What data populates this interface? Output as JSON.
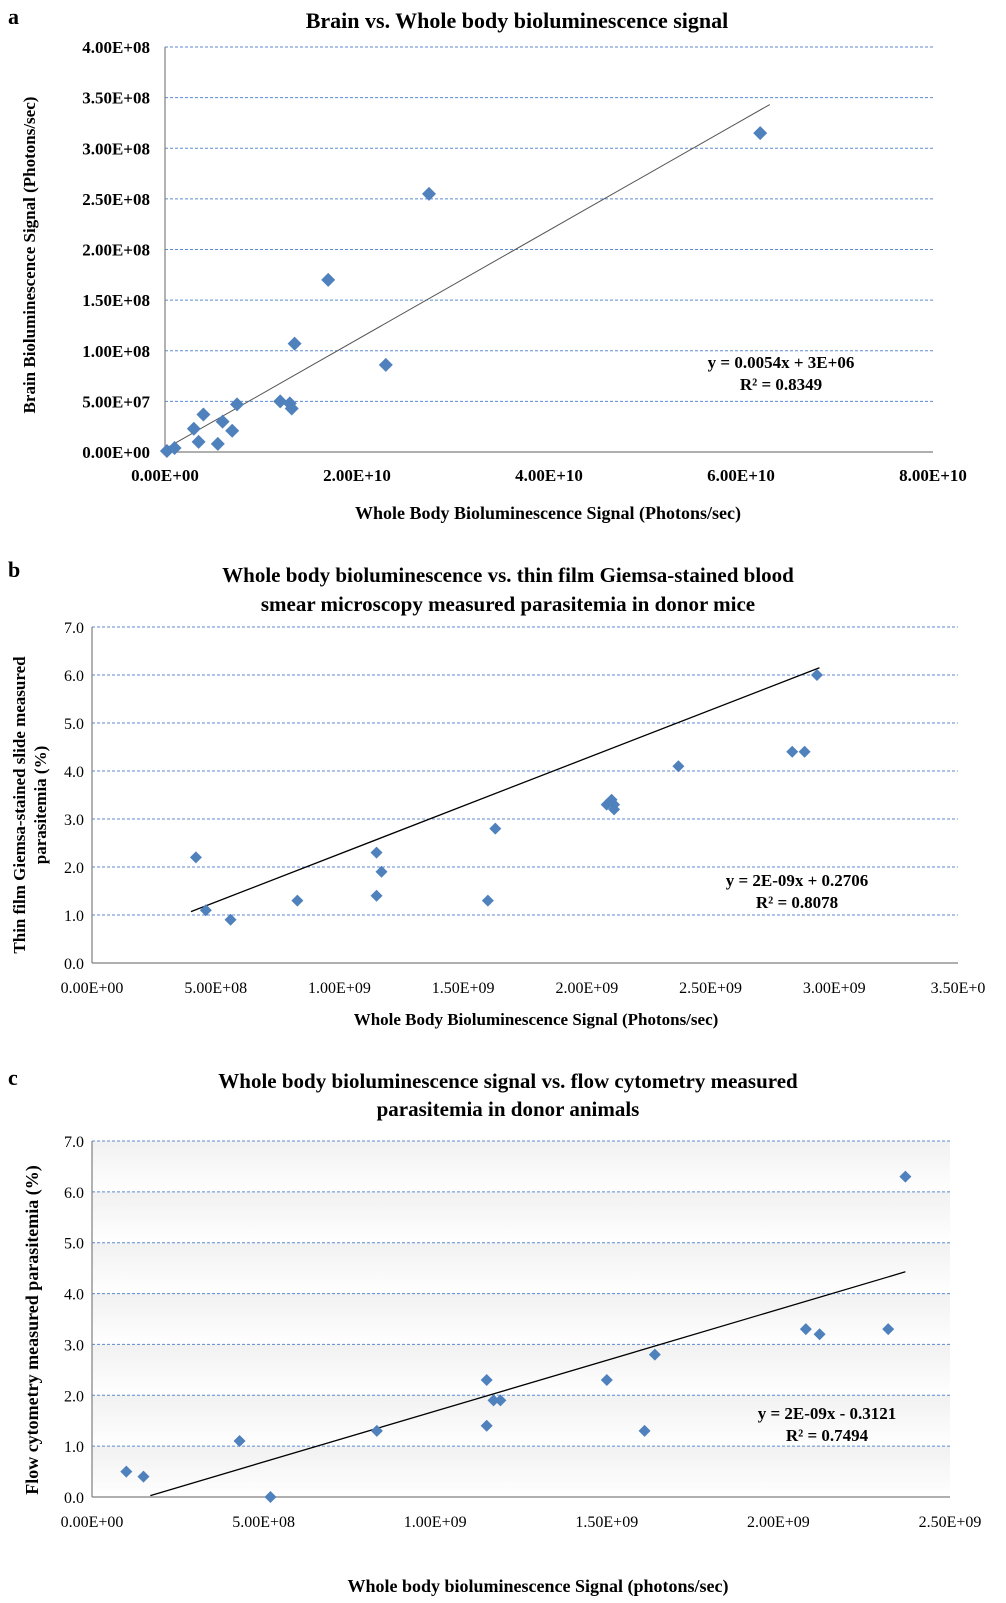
{
  "chart_data": [
    {
      "type": "scatter",
      "panel_label": "a",
      "title": "Brain vs. Whole body bioluminescence signal",
      "xlabel": "Whole Body Bioluminescence Signal (Photons/sec)",
      "ylabel": "Brain Bioluminescence Signal (Photons/sec)",
      "xlim": [
        0,
        80000000000
      ],
      "ylim": [
        0,
        400000000
      ],
      "x_ticks": [
        "0.00E+00",
        "2.00E+10",
        "4.00E+10",
        "6.00E+10",
        "8.00E+10"
      ],
      "y_ticks": [
        "0.00E+00",
        "5.00E+07",
        "1.00E+08",
        "1.50E+08",
        "2.00E+08",
        "2.50E+08",
        "3.00E+08",
        "3.50E+08",
        "4.00E+08"
      ],
      "grid": true,
      "marker_color": "#4f81bd",
      "trendline": {
        "slope": 0.0054,
        "intercept": 3000000,
        "x_range": [
          0,
          63000000000
        ]
      },
      "equation": "y = 0.0054x + 3E+06",
      "r_squared": "R² = 0.8349",
      "series": [
        {
          "x": [
            200000000,
            1000000000,
            3000000000,
            3500000000,
            4000000000,
            5500000000,
            6000000000,
            7000000000,
            7500000000,
            12000000000,
            13000000000,
            13200000000,
            13500000000,
            17000000000,
            23000000000,
            27500000000,
            62000000000
          ],
          "y": [
            1000000,
            4000000,
            23000000,
            10000000,
            37000000,
            8000000,
            30000000,
            21000000,
            47000000,
            50000000,
            48000000,
            43000000,
            107000000,
            170000000,
            86000000,
            255000000,
            315000000
          ]
        }
      ]
    },
    {
      "type": "scatter",
      "panel_label": "b",
      "title_lines": [
        "Whole body bioluminescence vs. thin film Giemsa-stained blood",
        "smear microscopy measured parasitemia in donor mice"
      ],
      "xlabel": "Whole Body Bioluminescence Signal (Photons/sec)",
      "ylabel_lines": [
        "Thin film Giemsa-stained slide measured",
        "parasitemia (%)"
      ],
      "xlim": [
        0,
        3500000000
      ],
      "ylim": [
        0,
        7
      ],
      "x_ticks": [
        "0.00E+00",
        "5.00E+08",
        "1.00E+09",
        "1.50E+09",
        "2.00E+09",
        "2.50E+09",
        "3.00E+09",
        "3.50E+0"
      ],
      "y_ticks": [
        "0.0",
        "1.0",
        "2.0",
        "3.0",
        "4.0",
        "5.0",
        "6.0",
        "7.0"
      ],
      "grid": true,
      "marker_color": "#4f81bd",
      "trendline": {
        "slope": 2e-09,
        "intercept": 0.2706,
        "x_range": [
          400000000,
          2940000000
        ]
      },
      "equation": "y = 2E-09x + 0.2706",
      "r_squared": "R² = 0.8078",
      "series": [
        {
          "x": [
            420000000,
            460000000,
            560000000,
            830000000,
            1150000000,
            1150000000,
            1170000000,
            1600000000,
            1630000000,
            2080000000,
            2100000000,
            2110000000,
            2110000000,
            2370000000,
            2830000000,
            2880000000,
            2930000000
          ],
          "y": [
            2.2,
            1.1,
            0.9,
            1.3,
            2.3,
            1.4,
            1.9,
            1.3,
            2.8,
            3.3,
            3.4,
            3.3,
            3.2,
            4.1,
            4.4,
            4.4,
            6.0
          ]
        }
      ]
    },
    {
      "type": "scatter",
      "panel_label": "c",
      "title_lines": [
        "Whole body bioluminescence signal vs. flow cytometry measured",
        "parasitemia in donor animals"
      ],
      "xlabel": "Whole body bioluminescence Signal (photons/sec)",
      "ylabel": "Flow cytometry measured parasitemia (%)",
      "xlim": [
        0,
        2500000000
      ],
      "ylim": [
        0,
        7
      ],
      "x_ticks": [
        "0.00E+00",
        "5.00E+08",
        "1.00E+09",
        "1.50E+09",
        "2.00E+09",
        "2.50E+09"
      ],
      "y_ticks": [
        "0.0",
        "1.0",
        "2.0",
        "3.0",
        "4.0",
        "5.0",
        "6.0",
        "7.0"
      ],
      "grid": true,
      "marker_color": "#4f81bd",
      "trendline": {
        "slope": 2e-09,
        "intercept": -0.3121,
        "x_range": [
          170000000,
          2370000000
        ]
      },
      "equation": "y = 2E-09x - 0.3121",
      "r_squared": "R² = 0.7494",
      "series": [
        {
          "x": [
            100000000,
            150000000,
            430000000,
            520000000,
            830000000,
            1150000000,
            1150000000,
            1170000000,
            1190000000,
            1500000000,
            1610000000,
            1640000000,
            2080000000,
            2120000000,
            2320000000,
            2370000000
          ],
          "y": [
            0.5,
            0.4,
            1.1,
            0.0,
            1.3,
            2.3,
            1.4,
            1.9,
            1.9,
            2.3,
            1.3,
            2.8,
            3.3,
            3.2,
            3.3,
            6.3
          ]
        }
      ]
    }
  ]
}
